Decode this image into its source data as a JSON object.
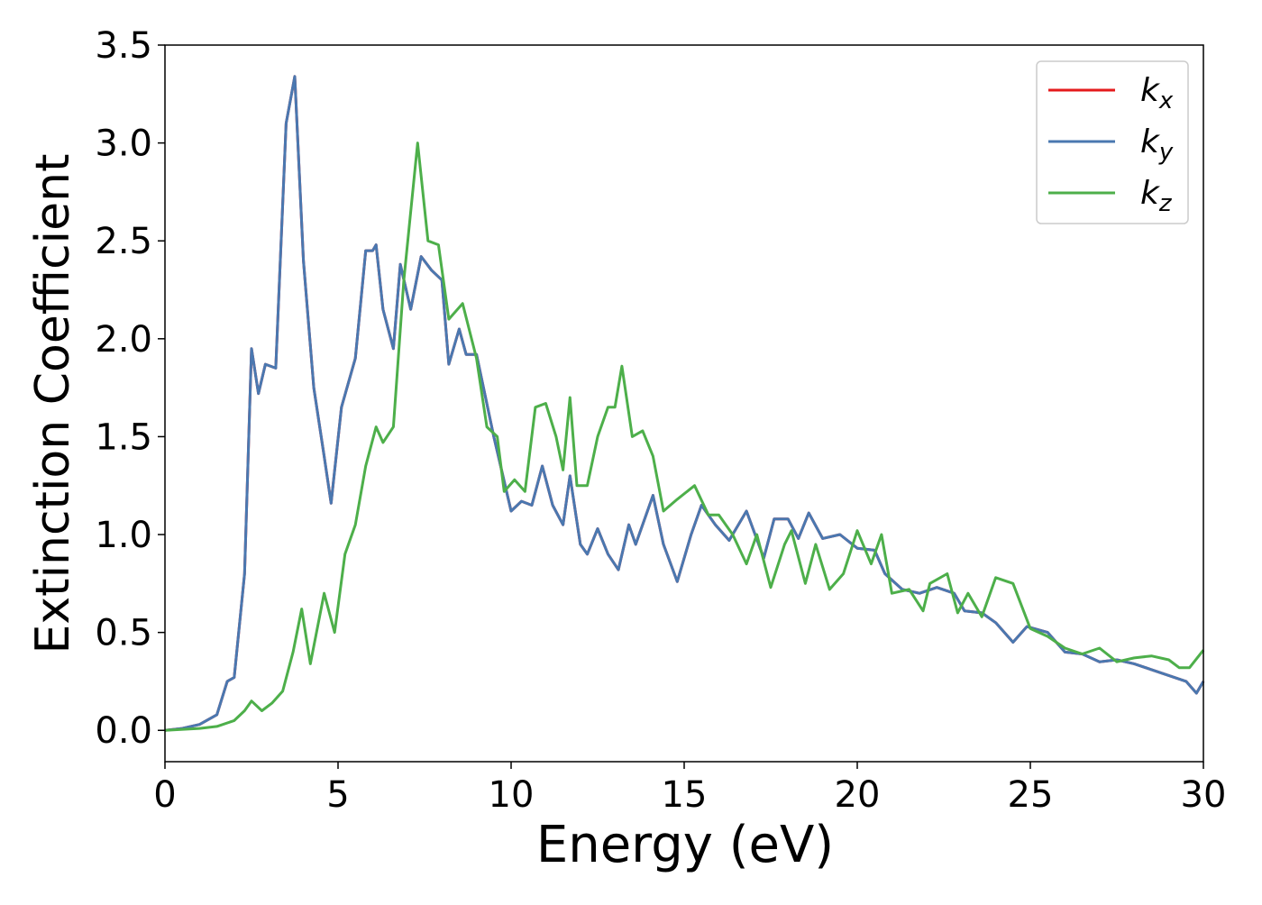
{
  "chart_data": {
    "type": "line",
    "xlabel": "Energy (eV)",
    "ylabel": "Extinction Coefficient",
    "xlim": [
      0,
      30
    ],
    "ylim": [
      -0.16,
      3.5
    ],
    "xticks": [
      0,
      5,
      10,
      15,
      20,
      25,
      30
    ],
    "yticks": [
      {
        "value": 0,
        "label": "0.0"
      },
      0.5,
      {
        "value": 1,
        "label": "1.0"
      },
      1.5,
      {
        "value": 2,
        "label": "2.0"
      },
      2.5,
      {
        "value": 3,
        "label": "3.0"
      },
      3.5
    ],
    "legend": "upper right",
    "grid": false,
    "series": [
      {
        "name": "kx",
        "color": "#e41a1c",
        "x": [
          0,
          0.5,
          1,
          1.5,
          1.8,
          2,
          2.3,
          2.5,
          2.7,
          2.9,
          3.2,
          3.5,
          3.75,
          4,
          4.3,
          4.6,
          4.8,
          5.1,
          5.5,
          5.8,
          6,
          6.1,
          6.3,
          6.6,
          6.8,
          7.1,
          7.4,
          7.7,
          8,
          8.2,
          8.5,
          8.7,
          9,
          9.5,
          10,
          10.3,
          10.6,
          10.9,
          11.2,
          11.5,
          11.7,
          12,
          12.2,
          12.5,
          12.8,
          13.1,
          13.4,
          13.6,
          14.1,
          14.4,
          14.8,
          15.2,
          15.5,
          15.9,
          16.3,
          16.8,
          17.3,
          17.6,
          18,
          18.3,
          18.6,
          19,
          19.5,
          20,
          20.5,
          20.8,
          21.3,
          21.8,
          22.3,
          22.8,
          23.1,
          23.6,
          24,
          24.5,
          24.9,
          25.5,
          26,
          26.5,
          27,
          27.5,
          28,
          28.5,
          29,
          29.5,
          29.8,
          30
        ],
        "values": [
          0,
          0.01,
          0.03,
          0.08,
          0.25,
          0.27,
          0.8,
          1.95,
          1.72,
          1.87,
          1.85,
          3.1,
          3.34,
          2.4,
          1.75,
          1.4,
          1.16,
          1.65,
          1.9,
          2.45,
          2.45,
          2.48,
          2.15,
          1.95,
          2.38,
          2.15,
          2.42,
          2.35,
          2.3,
          1.87,
          2.05,
          1.92,
          1.92,
          1.5,
          1.12,
          1.17,
          1.15,
          1.35,
          1.15,
          1.05,
          1.3,
          0.95,
          0.9,
          1.03,
          0.9,
          0.82,
          1.05,
          0.95,
          1.2,
          0.95,
          0.76,
          1,
          1.15,
          1.05,
          0.97,
          1.12,
          0.88,
          1.08,
          1.08,
          0.98,
          1.11,
          0.98,
          1,
          0.93,
          0.92,
          0.8,
          0.72,
          0.7,
          0.73,
          0.7,
          0.61,
          0.6,
          0.55,
          0.45,
          0.53,
          0.5,
          0.4,
          0.39,
          0.35,
          0.36,
          0.34,
          0.31,
          0.28,
          0.25,
          0.19,
          0.25
        ]
      },
      {
        "name": "ky",
        "color": "#4a78b0",
        "x": [
          0,
          0.5,
          1,
          1.5,
          1.8,
          2,
          2.3,
          2.5,
          2.7,
          2.9,
          3.2,
          3.5,
          3.75,
          4,
          4.3,
          4.6,
          4.8,
          5.1,
          5.5,
          5.8,
          6,
          6.1,
          6.3,
          6.6,
          6.8,
          7.1,
          7.4,
          7.7,
          8,
          8.2,
          8.5,
          8.7,
          9,
          9.5,
          10,
          10.3,
          10.6,
          10.9,
          11.2,
          11.5,
          11.7,
          12,
          12.2,
          12.5,
          12.8,
          13.1,
          13.4,
          13.6,
          14.1,
          14.4,
          14.8,
          15.2,
          15.5,
          15.9,
          16.3,
          16.8,
          17.3,
          17.6,
          18,
          18.3,
          18.6,
          19,
          19.5,
          20,
          20.5,
          20.8,
          21.3,
          21.8,
          22.3,
          22.8,
          23.1,
          23.6,
          24,
          24.5,
          24.9,
          25.5,
          26,
          26.5,
          27,
          27.5,
          28,
          28.5,
          29,
          29.5,
          29.8,
          30
        ],
        "values": [
          0,
          0.01,
          0.03,
          0.08,
          0.25,
          0.27,
          0.8,
          1.95,
          1.72,
          1.87,
          1.85,
          3.1,
          3.34,
          2.4,
          1.75,
          1.4,
          1.16,
          1.65,
          1.9,
          2.45,
          2.45,
          2.48,
          2.15,
          1.95,
          2.38,
          2.15,
          2.42,
          2.35,
          2.3,
          1.87,
          2.05,
          1.92,
          1.92,
          1.5,
          1.12,
          1.17,
          1.15,
          1.35,
          1.15,
          1.05,
          1.3,
          0.95,
          0.9,
          1.03,
          0.9,
          0.82,
          1.05,
          0.95,
          1.2,
          0.95,
          0.76,
          1,
          1.15,
          1.05,
          0.97,
          1.12,
          0.88,
          1.08,
          1.08,
          0.98,
          1.11,
          0.98,
          1,
          0.93,
          0.92,
          0.8,
          0.72,
          0.7,
          0.73,
          0.7,
          0.61,
          0.6,
          0.55,
          0.45,
          0.53,
          0.5,
          0.4,
          0.39,
          0.35,
          0.36,
          0.34,
          0.31,
          0.28,
          0.25,
          0.19,
          0.25
        ]
      },
      {
        "name": "kz",
        "color": "#4daf4a",
        "x": [
          0,
          1,
          1.5,
          2,
          2.3,
          2.5,
          2.8,
          3.1,
          3.4,
          3.7,
          3.95,
          4.2,
          4.6,
          4.9,
          5.2,
          5.5,
          5.8,
          6.1,
          6.3,
          6.6,
          6.9,
          7.3,
          7.6,
          7.9,
          8.2,
          8.6,
          9,
          9.3,
          9.6,
          9.8,
          10.1,
          10.4,
          10.7,
          11,
          11.3,
          11.5,
          11.7,
          11.9,
          12.2,
          12.5,
          12.8,
          13,
          13.2,
          13.5,
          13.8,
          14.1,
          14.4,
          14.8,
          15.3,
          15.7,
          16,
          16.4,
          16.8,
          17.1,
          17.5,
          17.9,
          18.1,
          18.5,
          18.8,
          19.2,
          19.6,
          20,
          20.4,
          20.7,
          21,
          21.5,
          21.9,
          22.1,
          22.6,
          22.9,
          23.2,
          23.6,
          24,
          24.5,
          25,
          25.5,
          26,
          26.5,
          27,
          27.5,
          28,
          28.5,
          29,
          29.3,
          29.6,
          30
        ],
        "values": [
          0,
          0.01,
          0.02,
          0.05,
          0.1,
          0.15,
          0.1,
          0.14,
          0.2,
          0.4,
          0.62,
          0.34,
          0.7,
          0.5,
          0.9,
          1.05,
          1.35,
          1.55,
          1.47,
          1.55,
          2.3,
          3,
          2.5,
          2.48,
          2.1,
          2.18,
          1.9,
          1.55,
          1.5,
          1.22,
          1.28,
          1.22,
          1.65,
          1.67,
          1.5,
          1.33,
          1.7,
          1.25,
          1.25,
          1.5,
          1.65,
          1.65,
          1.86,
          1.5,
          1.53,
          1.4,
          1.12,
          1.18,
          1.25,
          1.1,
          1.1,
          1,
          0.85,
          1,
          0.73,
          0.95,
          1.02,
          0.75,
          0.95,
          0.72,
          0.8,
          1.02,
          0.85,
          1,
          0.7,
          0.72,
          0.61,
          0.75,
          0.8,
          0.6,
          0.7,
          0.58,
          0.78,
          0.75,
          0.52,
          0.48,
          0.42,
          0.39,
          0.42,
          0.35,
          0.37,
          0.38,
          0.36,
          0.32,
          0.32,
          0.41
        ]
      }
    ]
  }
}
